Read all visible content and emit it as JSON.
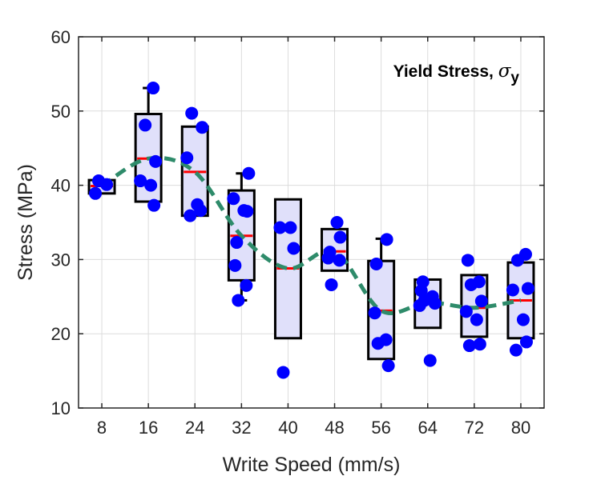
{
  "chart_data": {
    "type": "box",
    "title": "",
    "xlabel": "Write Speed (mm/s)",
    "ylabel": "Stress (MPa)",
    "annotation": {
      "text": "Yield Stress, ",
      "symbol": "σ",
      "subscript": "y"
    },
    "categories": [
      "8",
      "16",
      "24",
      "32",
      "40",
      "48",
      "56",
      "64",
      "72",
      "80"
    ],
    "ylim": [
      10,
      60
    ],
    "yticks": [
      "10",
      "20",
      "30",
      "40",
      "50",
      "60"
    ],
    "grid": true,
    "colors": {
      "box_edge": "#000000",
      "box_fill": "#e0e0fa",
      "median": "#ff0000",
      "points": "#0000ff",
      "trend": "#2e8b6a",
      "grid": "#dcdcdc",
      "axis": "#262626"
    },
    "boxes": [
      {
        "category": "8",
        "q1": 38.9,
        "median": 39.9,
        "q3": 40.7,
        "whisker_low": 38.9,
        "whisker_high": 40.7
      },
      {
        "category": "16",
        "q1": 37.8,
        "median": 43.6,
        "q3": 49.6,
        "whisker_low": 37.8,
        "whisker_high": 53.1
      },
      {
        "category": "24",
        "q1": 35.9,
        "median": 41.8,
        "q3": 47.9,
        "whisker_low": 35.9,
        "whisker_high": 47.9
      },
      {
        "category": "32",
        "q1": 27.2,
        "median": 33.2,
        "q3": 39.3,
        "whisker_low": 24.5,
        "whisker_high": 41.6
      },
      {
        "category": "40",
        "q1": 19.4,
        "median": 28.8,
        "q3": 38.1,
        "whisker_low": 19.4,
        "whisker_high": 38.1
      },
      {
        "category": "48",
        "q1": 28.5,
        "median": 31.1,
        "q3": 34.1,
        "whisker_low": 28.5,
        "whisker_high": 34.1
      },
      {
        "category": "56",
        "q1": 16.6,
        "median": 23.1,
        "q3": 29.8,
        "whisker_low": 16.6,
        "whisker_high": 32.8
      },
      {
        "category": "64",
        "q1": 20.8,
        "median": 24.2,
        "q3": 27.3,
        "whisker_low": 20.8,
        "whisker_high": 27.3
      },
      {
        "category": "72",
        "q1": 19.6,
        "median": 23.5,
        "q3": 27.9,
        "whisker_low": 19.6,
        "whisker_high": 27.9
      },
      {
        "category": "80",
        "q1": 19.4,
        "median": 24.5,
        "q3": 29.6,
        "whisker_low": 19.4,
        "whisker_high": 29.6
      }
    ],
    "points": [
      {
        "category": "8",
        "values": [
          38.9,
          40.1,
          40.6
        ]
      },
      {
        "category": "16",
        "values": [
          53.1,
          48.1,
          43.2,
          40.6,
          40.0,
          37.3
        ]
      },
      {
        "category": "24",
        "values": [
          49.7,
          47.8,
          43.7,
          37.4,
          36.6,
          35.9
        ]
      },
      {
        "category": "32",
        "values": [
          41.6,
          38.2,
          36.6,
          36.5,
          32.3,
          29.2,
          26.5,
          24.5
        ]
      },
      {
        "category": "40",
        "values": [
          34.3,
          34.3,
          31.5,
          14.8
        ]
      },
      {
        "category": "48",
        "values": [
          35.0,
          33.0,
          31.0,
          30.2,
          29.9,
          26.6
        ]
      },
      {
        "category": "56",
        "values": [
          32.7,
          29.4,
          22.8,
          19.2,
          18.7,
          15.7
        ]
      },
      {
        "category": "64",
        "values": [
          27.0,
          25.8,
          25.0,
          24.5,
          24.1,
          23.8,
          16.4
        ]
      },
      {
        "category": "72",
        "values": [
          29.9,
          27.0,
          26.6,
          24.4,
          23.0,
          21.9,
          18.6,
          18.4
        ]
      },
      {
        "category": "80",
        "values": [
          30.7,
          29.9,
          26.1,
          25.9,
          21.9,
          18.9,
          17.8
        ]
      }
    ],
    "trend": {
      "style": "dashed",
      "values": [
        39.9,
        43.6,
        41.8,
        33.2,
        28.8,
        31.1,
        23.1,
        24.2,
        23.5,
        24.5
      ]
    }
  }
}
